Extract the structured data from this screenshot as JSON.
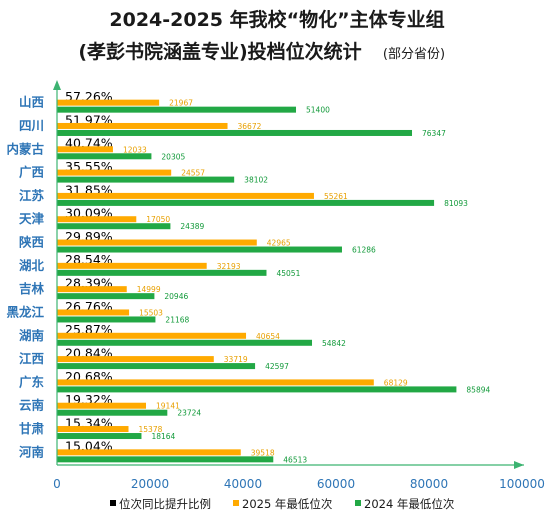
{
  "title_line1": "2024-2025 年我校“物化”主体专业组",
  "title_line2": "(孝彭书院涵盖专业)投档位次统计",
  "title_note": "(部分省份)",
  "chart_data": {
    "type": "bar",
    "orientation": "horizontal",
    "categories": [
      "山西",
      "四川",
      "内蒙古",
      "广西",
      "江苏",
      "天津",
      "陕西",
      "湖北",
      "吉林",
      "黑龙江",
      "湖南",
      "江西",
      "广东",
      "云南",
      "甘肃",
      "河南"
    ],
    "rise_ratio": [
      "57.26%",
      "51.97%",
      "40.74%",
      "35.55%",
      "31.85%",
      "30.09%",
      "29.89%",
      "28.54%",
      "28.39%",
      "26.76%",
      "25.87%",
      "20.84%",
      "20.68%",
      "19.32%",
      "15.34%",
      "15.04%"
    ],
    "series": [
      {
        "name": "2025 年最低位次",
        "color": "#ffaa00",
        "label_color": "#e8a000",
        "values": [
          21967,
          36672,
          12033,
          24557,
          55261,
          17050,
          42965,
          32193,
          14999,
          15503,
          40654,
          33719,
          68129,
          19141,
          15378,
          39518
        ]
      },
      {
        "name": "2024 年最低位次",
        "color": "#22a845",
        "label_color": "#129a3a",
        "values": [
          51400,
          76347,
          20305,
          38102,
          81093,
          24389,
          61286,
          45051,
          20946,
          21168,
          54842,
          42597,
          85894,
          23724,
          18164,
          46513
        ]
      }
    ],
    "legend_ratio_label": "位次同比提升比例",
    "legend_ratio_color": "#000000",
    "xlim": [
      0,
      100000
    ],
    "xticks": [
      0,
      20000,
      40000,
      60000,
      80000,
      100000
    ],
    "tick_color": "#2e75b6",
    "axis_color": "#3cb371",
    "grid": false,
    "legend_position": "bottom"
  }
}
